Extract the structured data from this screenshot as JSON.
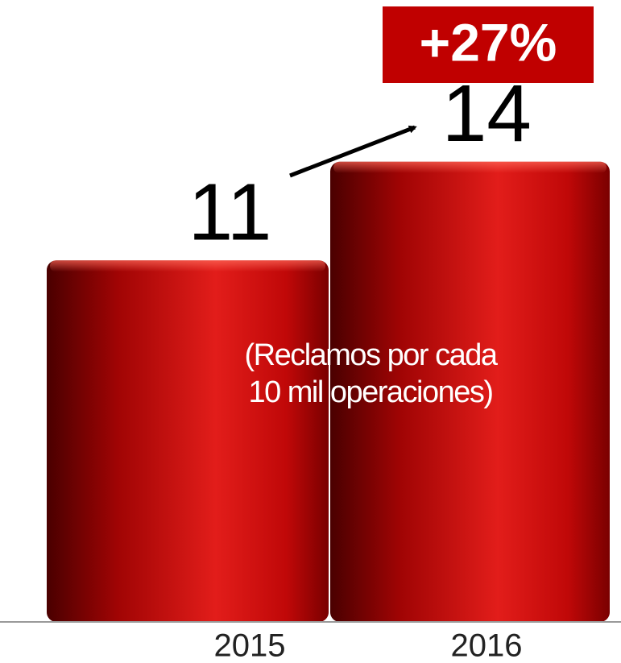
{
  "chart_data": {
    "type": "bar",
    "categories": [
      "2015",
      "2016"
    ],
    "values": [
      11,
      14
    ],
    "color": "#c80a0a",
    "annotation": "+27%",
    "note": "(Reclamos por cada 10 mil operaciones)"
  }
}
